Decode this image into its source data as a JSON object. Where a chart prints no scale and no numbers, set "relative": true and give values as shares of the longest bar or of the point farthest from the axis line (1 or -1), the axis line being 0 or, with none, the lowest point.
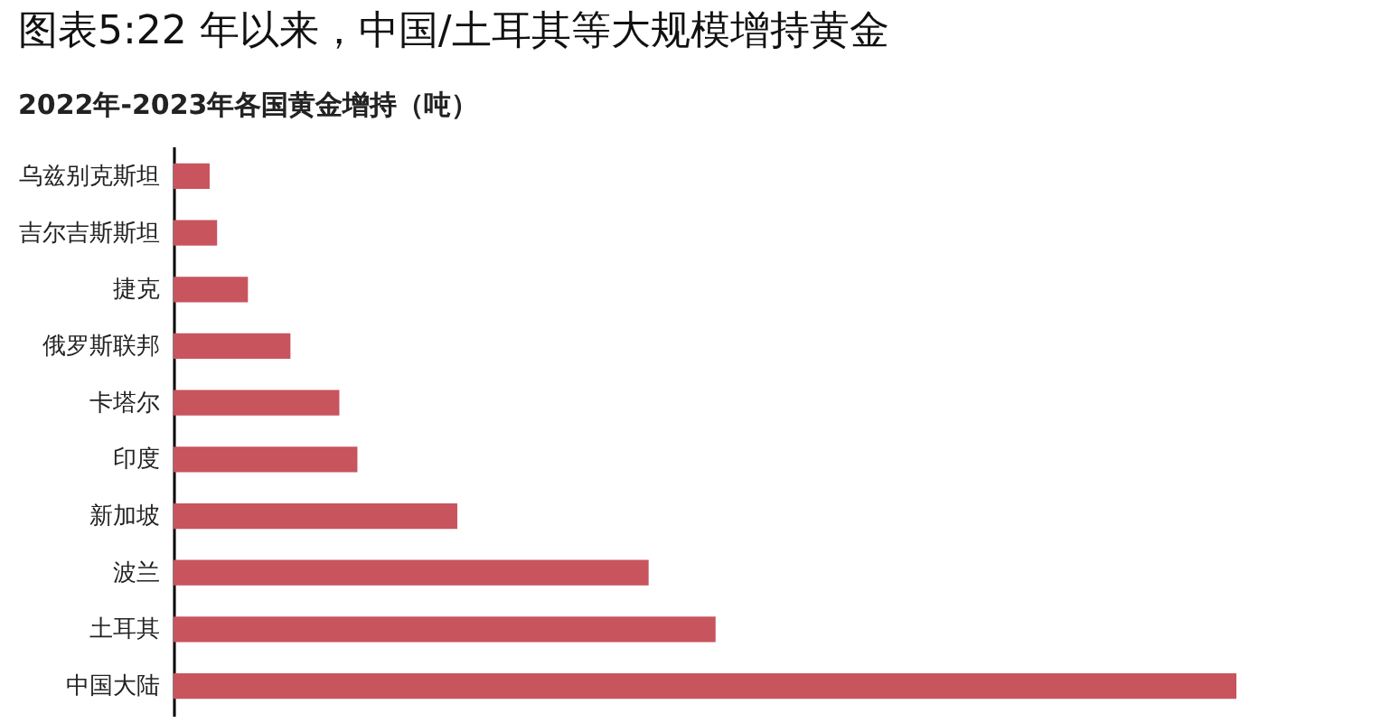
{
  "chart_data": {
    "type": "bar",
    "orientation": "horizontal",
    "relative": true,
    "title": "图表5:22 年以来，中国/土耳其等大规模增持黄金",
    "subtitle": "2022年-2023年各国黄金增持（吨）",
    "categories": [
      "乌兹别克斯坦",
      "吉尔吉斯斯坦",
      "捷克",
      "俄罗斯联邦",
      "卡塔尔",
      "印度",
      "新加坡",
      "波兰",
      "土耳其",
      "中国大陆"
    ],
    "values": [
      0.034,
      0.041,
      0.07,
      0.11,
      0.156,
      0.173,
      0.267,
      0.447,
      0.51,
      1
    ],
    "color": "#c8545e",
    "grid": false
  }
}
